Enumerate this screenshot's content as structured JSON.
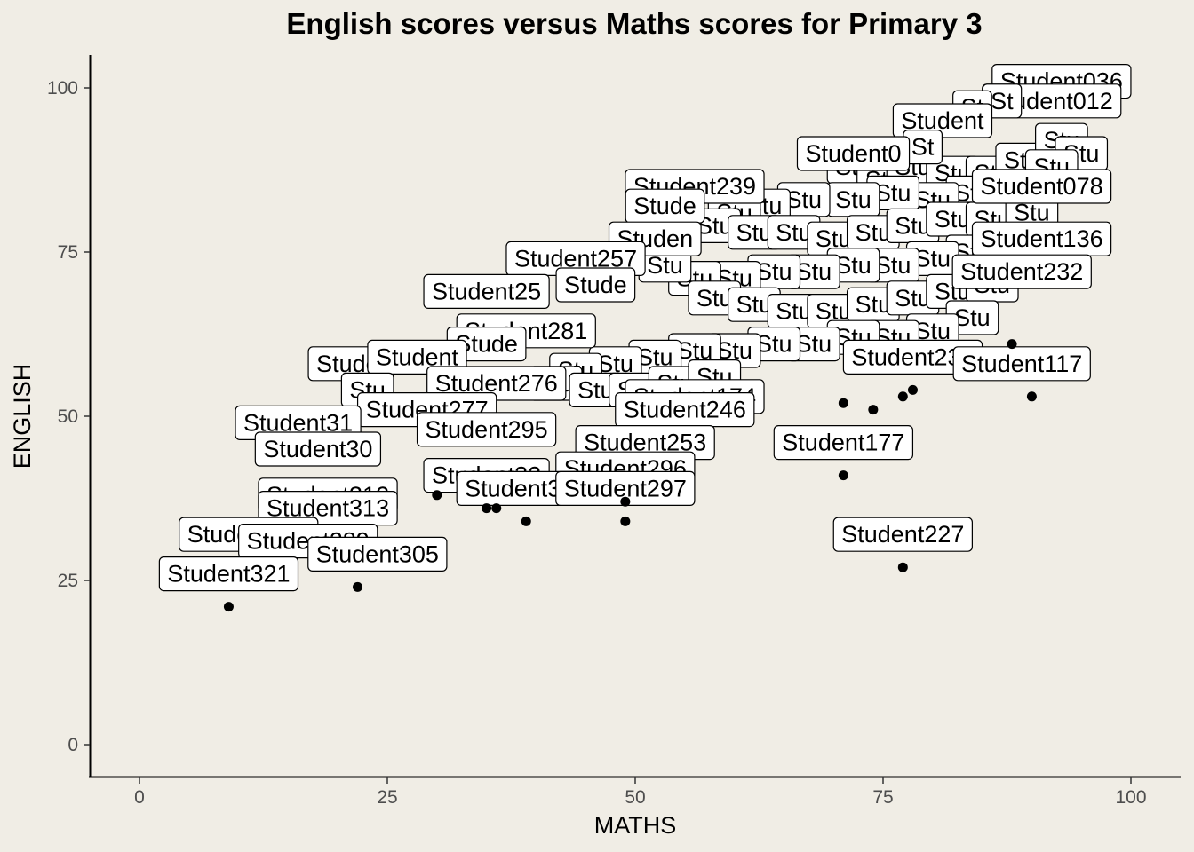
{
  "chart_data": {
    "type": "scatter",
    "title": "English scores versus Maths scores for Primary 3",
    "xlabel": "MATHS",
    "ylabel": "ENGLISH",
    "xlim": [
      -5,
      105
    ],
    "ylim": [
      -5,
      105
    ],
    "xticks": [
      0,
      25,
      50,
      75,
      100
    ],
    "yticks": [
      0,
      25,
      50,
      75,
      100
    ],
    "grid": false,
    "points": [
      {
        "x": 9,
        "y": 21
      },
      {
        "x": 22,
        "y": 24
      },
      {
        "x": 30,
        "y": 38
      },
      {
        "x": 35,
        "y": 36
      },
      {
        "x": 36,
        "y": 36
      },
      {
        "x": 39,
        "y": 34
      },
      {
        "x": 49,
        "y": 34
      },
      {
        "x": 49,
        "y": 37
      },
      {
        "x": 71,
        "y": 41
      },
      {
        "x": 77,
        "y": 27
      },
      {
        "x": 71,
        "y": 52
      },
      {
        "x": 74,
        "y": 51
      },
      {
        "x": 77,
        "y": 53
      },
      {
        "x": 78,
        "y": 54
      },
      {
        "x": 88,
        "y": 61
      },
      {
        "x": 90,
        "y": 53
      }
    ],
    "labels": [
      {
        "text": "Student036",
        "x": 93,
        "y": 101
      },
      {
        "text": "Student012",
        "x": 92,
        "y": 98
      },
      {
        "text": "St",
        "x": 87,
        "y": 98
      },
      {
        "text": "St",
        "x": 84,
        "y": 97
      },
      {
        "text": "Student",
        "x": 81,
        "y": 95
      },
      {
        "text": "St",
        "x": 79,
        "y": 91
      },
      {
        "text": "Student0",
        "x": 72,
        "y": 90
      },
      {
        "text": "Student078",
        "x": 91,
        "y": 85
      },
      {
        "text": "Student239",
        "x": 56,
        "y": 85
      },
      {
        "text": "Stude",
        "x": 53,
        "y": 82
      },
      {
        "text": "Student136",
        "x": 91,
        "y": 77
      },
      {
        "text": "Studen",
        "x": 52,
        "y": 77
      },
      {
        "text": "Student232",
        "x": 89,
        "y": 72
      },
      {
        "text": "Student257",
        "x": 44,
        "y": 74
      },
      {
        "text": "Student25",
        "x": 35,
        "y": 69
      },
      {
        "text": "Stude",
        "x": 46,
        "y": 70
      },
      {
        "text": "Student281",
        "x": 39,
        "y": 63
      },
      {
        "text": "Stude",
        "x": 35,
        "y": 61
      },
      {
        "text": "Student231",
        "x": 78,
        "y": 59
      },
      {
        "text": "Student117",
        "x": 89,
        "y": 58
      },
      {
        "text": "Stude",
        "x": 21,
        "y": 58
      },
      {
        "text": "Student",
        "x": 28,
        "y": 59
      },
      {
        "text": "Student276",
        "x": 36,
        "y": 55
      },
      {
        "text": "Stu",
        "x": 23,
        "y": 54
      },
      {
        "text": "Student277",
        "x": 29,
        "y": 51
      },
      {
        "text": "Student174",
        "x": 56,
        "y": 53
      },
      {
        "text": "Student246",
        "x": 55,
        "y": 51
      },
      {
        "text": "Student31",
        "x": 16,
        "y": 49
      },
      {
        "text": "Student295",
        "x": 35,
        "y": 48
      },
      {
        "text": "Student253",
        "x": 51,
        "y": 46
      },
      {
        "text": "Student30",
        "x": 18,
        "y": 45
      },
      {
        "text": "Student177",
        "x": 71,
        "y": 46
      },
      {
        "text": "Student296",
        "x": 49,
        "y": 42
      },
      {
        "text": "Student32",
        "x": 35,
        "y": 41
      },
      {
        "text": "Student314",
        "x": 39,
        "y": 39
      },
      {
        "text": "Student297",
        "x": 49,
        "y": 39
      },
      {
        "text": "Student312",
        "x": 19,
        "y": 38
      },
      {
        "text": "Student313",
        "x": 19,
        "y": 36
      },
      {
        "text": "Student318",
        "x": 11,
        "y": 32
      },
      {
        "text": "Student289",
        "x": 17,
        "y": 31
      },
      {
        "text": "Student305",
        "x": 24,
        "y": 29
      },
      {
        "text": "Student227",
        "x": 77,
        "y": 32
      },
      {
        "text": "Student321",
        "x": 9,
        "y": 26
      }
    ],
    "hidden_labels": [
      "Stu",
      "Stu",
      "Stu",
      "Stu",
      "Stu",
      "Stu",
      "Stu",
      "Stu",
      "Stu",
      "Stu",
      "Stu",
      "Stu",
      "Stu",
      "Stu",
      "Stu",
      "Stu",
      "Stu",
      "Stu",
      "Stu",
      "Stu",
      "Stu",
      "Stu",
      "Stu",
      "Stu",
      "Stu",
      "Stu",
      "Stu",
      "Stu",
      "Stu",
      "Stu",
      "Stu",
      "Stu",
      "Stu",
      "Stu",
      "Stu",
      "Stu",
      "Stu",
      "Stu",
      "Stu",
      "Stu",
      "Stu",
      "Stu",
      "Stu",
      "Stu",
      "Stu",
      "Stu",
      "Stu",
      "Stu",
      "Stu",
      "Stu",
      "Stu",
      "Stu",
      "Stu",
      "Stu",
      "Stu",
      "Stu",
      "Stu",
      "Stu",
      "Stu",
      "Stu"
    ],
    "hidden_positions": [
      [
        72,
        88
      ],
      [
        75,
        86
      ],
      [
        78,
        88
      ],
      [
        82,
        87
      ],
      [
        86,
        87
      ],
      [
        89,
        89
      ],
      [
        93,
        92
      ],
      [
        95,
        90
      ],
      [
        92,
        88
      ],
      [
        88,
        85
      ],
      [
        84,
        84
      ],
      [
        80,
        83
      ],
      [
        76,
        84
      ],
      [
        72,
        83
      ],
      [
        67,
        83
      ],
      [
        63,
        82
      ],
      [
        60,
        81
      ],
      [
        58,
        79
      ],
      [
        62,
        78
      ],
      [
        66,
        78
      ],
      [
        70,
        77
      ],
      [
        74,
        78
      ],
      [
        78,
        79
      ],
      [
        82,
        80
      ],
      [
        86,
        80
      ],
      [
        90,
        81
      ],
      [
        88,
        76
      ],
      [
        84,
        75
      ],
      [
        80,
        74
      ],
      [
        76,
        73
      ],
      [
        72,
        73
      ],
      [
        68,
        72
      ],
      [
        64,
        72
      ],
      [
        60,
        71
      ],
      [
        56,
        71
      ],
      [
        53,
        73
      ],
      [
        58,
        68
      ],
      [
        62,
        67
      ],
      [
        66,
        66
      ],
      [
        70,
        66
      ],
      [
        74,
        67
      ],
      [
        78,
        68
      ],
      [
        82,
        69
      ],
      [
        86,
        70
      ],
      [
        84,
        65
      ],
      [
        80,
        63
      ],
      [
        76,
        62
      ],
      [
        72,
        62
      ],
      [
        68,
        61
      ],
      [
        64,
        61
      ],
      [
        60,
        60
      ],
      [
        56,
        60
      ],
      [
        52,
        59
      ],
      [
        48,
        58
      ],
      [
        44,
        57
      ],
      [
        42,
        55
      ],
      [
        46,
        54
      ],
      [
        50,
        54
      ],
      [
        54,
        55
      ],
      [
        58,
        56
      ]
    ]
  }
}
